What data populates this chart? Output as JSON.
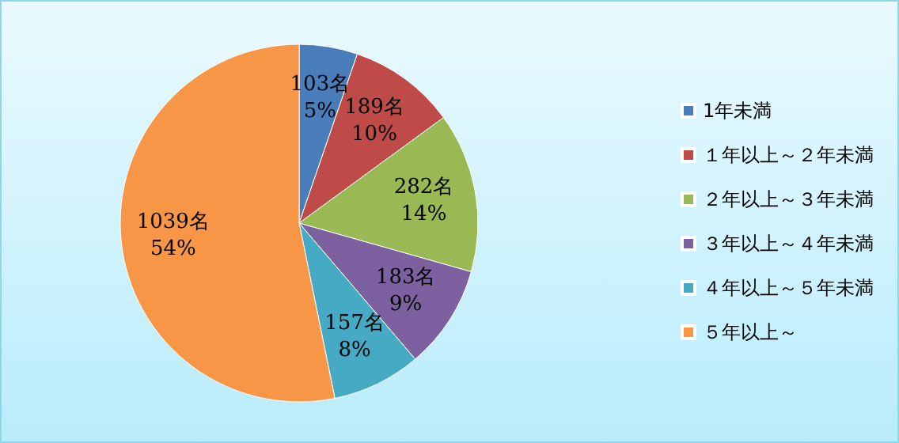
{
  "chart_data": {
    "type": "pie",
    "categories": [
      "1年未満",
      "１年以上～２年未満",
      "２年以上～３年未満",
      "３年以上～４年未満",
      "４年以上～５年未満",
      "５年以上～"
    ],
    "values": [
      103,
      189,
      282,
      183,
      157,
      1039
    ],
    "value_labels": [
      "103名\n5%",
      "189名\n10%",
      "282名\n14%",
      "183名\n9%",
      "157名\n8%",
      "1039名\n54%"
    ],
    "colors": [
      "#4a7ebb",
      "#be4b48",
      "#98b954",
      "#7d60a0",
      "#46aac5",
      "#f79646"
    ],
    "legend": "right"
  }
}
